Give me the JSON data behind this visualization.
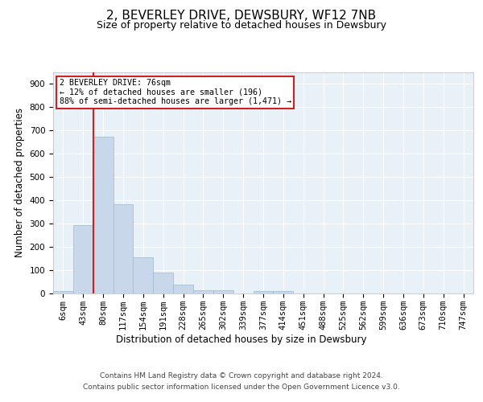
{
  "title": "2, BEVERLEY DRIVE, DEWSBURY, WF12 7NB",
  "subtitle": "Size of property relative to detached houses in Dewsbury",
  "xlabel": "Distribution of detached houses by size in Dewsbury",
  "ylabel": "Number of detached properties",
  "bar_labels": [
    "6sqm",
    "43sqm",
    "80sqm",
    "117sqm",
    "154sqm",
    "191sqm",
    "228sqm",
    "265sqm",
    "302sqm",
    "339sqm",
    "377sqm",
    "414sqm",
    "451sqm",
    "488sqm",
    "525sqm",
    "562sqm",
    "599sqm",
    "636sqm",
    "673sqm",
    "710sqm",
    "747sqm"
  ],
  "bar_values": [
    10,
    295,
    675,
    383,
    155,
    90,
    38,
    15,
    15,
    0,
    12,
    10,
    0,
    0,
    0,
    0,
    0,
    0,
    0,
    0,
    0
  ],
  "bar_color": "#c8d8ea",
  "bar_edgecolor": "#a0b8cc",
  "vline_x_index": 2,
  "vline_color": "#cc2222",
  "ylim": [
    0,
    950
  ],
  "yticks": [
    0,
    100,
    200,
    300,
    400,
    500,
    600,
    700,
    800,
    900
  ],
  "annotation_box_text": "2 BEVERLEY DRIVE: 76sqm\n← 12% of detached houses are smaller (196)\n88% of semi-detached houses are larger (1,471) →",
  "footer_line1": "Contains HM Land Registry data © Crown copyright and database right 2024.",
  "footer_line2": "Contains public sector information licensed under the Open Government Licence v3.0.",
  "background_color": "#ffffff",
  "plot_bg_color": "#e8f0f8",
  "grid_color": "#ffffff",
  "title_fontsize": 11,
  "subtitle_fontsize": 9,
  "axis_label_fontsize": 8.5,
  "tick_fontsize": 7.5,
  "footer_fontsize": 6.5
}
